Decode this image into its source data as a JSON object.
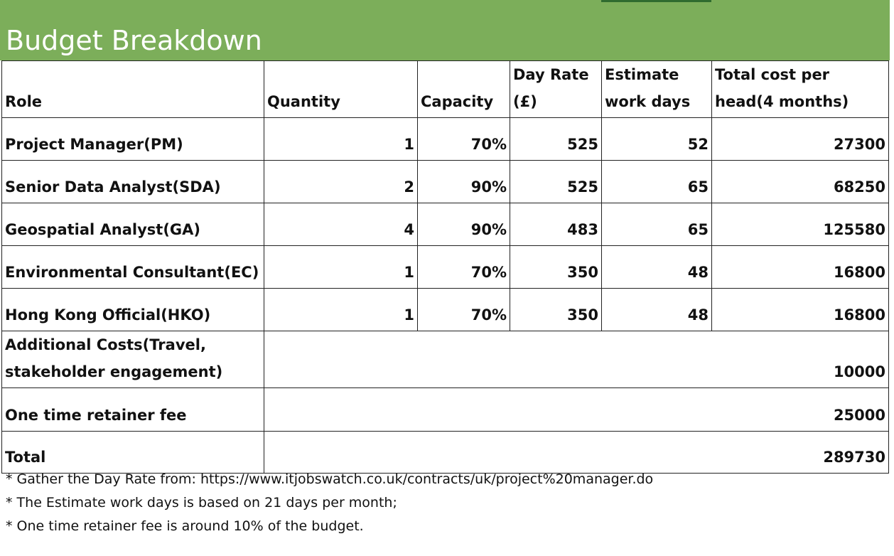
{
  "title": "Budget Breakdown",
  "table": {
    "header": [
      [
        "Role"
      ],
      [
        "Quantity"
      ],
      [
        "Capacity"
      ],
      [
        "Day Rate",
        "(£)"
      ],
      [
        "Estimate",
        "work days"
      ],
      [
        "Total cost per",
        "head(4 months)"
      ]
    ],
    "rows": [
      [
        "Project Manager(PM)",
        "1",
        "70%",
        "525",
        "52",
        "27300"
      ],
      [
        "Senior Data Analyst(SDA)",
        "2",
        "90%",
        "525",
        "65",
        "68250"
      ],
      [
        "Geospatial Analyst(GA)",
        "4",
        "90%",
        "483",
        "65",
        "125580"
      ],
      [
        "Environmental Consultant(EC)",
        "1",
        "70%",
        "350",
        "48",
        "16800"
      ],
      [
        "Hong Kong Official(HKO)",
        "1",
        "70%",
        "350",
        "48",
        "16800"
      ]
    ],
    "summary_rows": [
      {
        "label": [
          "Additional Costs(Travel,",
          "stakeholder engagement)"
        ],
        "value": "10000"
      },
      {
        "label": [
          "One time retainer fee"
        ],
        "value": "25000"
      },
      {
        "label": [
          "Total"
        ],
        "value": "289730"
      }
    ]
  },
  "notes": [
    "* Gather the Day Rate from: https://www.itjobswatch.co.uk/contracts/uk/project%20manager.do",
    "* The Estimate work days is based on 21 days per month;",
    "* One time retainer fee is around 10% of the budget."
  ]
}
